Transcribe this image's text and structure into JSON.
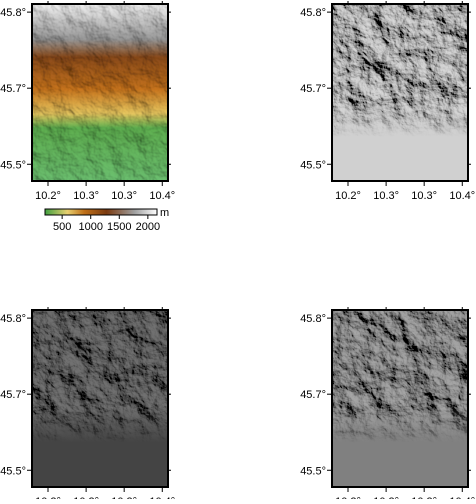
{
  "xticks": [
    {
      "value": 10.2,
      "label": "10.2°"
    },
    {
      "value": 10.2667,
      "label": "10.3°"
    },
    {
      "value": 10.3333,
      "label": "10.3°"
    },
    {
      "value": 10.4,
      "label": "10.4°"
    }
  ],
  "yticks": [
    {
      "value": 45.8,
      "label": "45.8°"
    },
    {
      "value": 45.65,
      "label": "45.7°"
    },
    {
      "value": 45.5,
      "label": "45.5°"
    }
  ],
  "xlim": [
    10.172,
    10.41
  ],
  "ylim": [
    45.467,
    45.816
  ],
  "colorbar": {
    "unit": "m",
    "clim": [
      200,
      2160
    ],
    "ticks": [
      500,
      1000,
      1500,
      2000
    ]
  }
}
